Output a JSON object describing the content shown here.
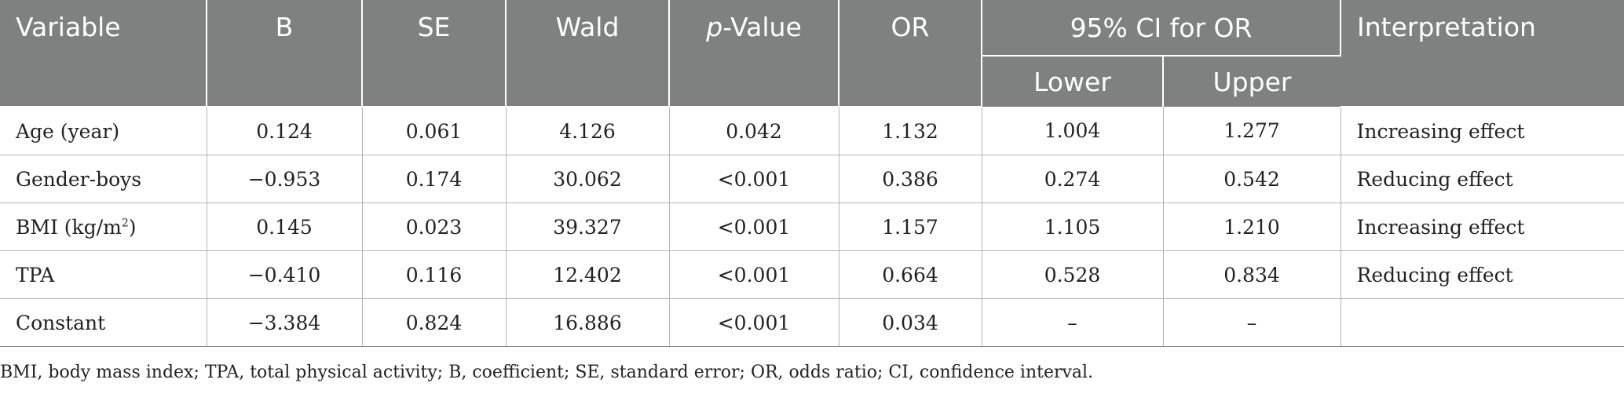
{
  "table": {
    "headers": {
      "variable": "Variable",
      "b": "B",
      "se": "SE",
      "wald": "Wald",
      "p_italic": "p",
      "p_rest": "-Value",
      "or": "OR",
      "ci_group": "95% CI for OR",
      "ci_lower": "Lower",
      "ci_upper": "Upper",
      "interpretation": "Interpretation"
    },
    "rows": [
      {
        "variable": "Age (year)",
        "variable_sup": "",
        "variable_suffix": "",
        "b": "0.124",
        "se": "0.061",
        "wald": "4.126",
        "p": "0.042",
        "or": "1.132",
        "lower": "1.004",
        "upper": "1.277",
        "interpretation": "Increasing effect"
      },
      {
        "variable": "Gender-boys",
        "variable_sup": "",
        "variable_suffix": "",
        "b": "−0.953",
        "se": "0.174",
        "wald": "30.062",
        "p": "<0.001",
        "or": "0.386",
        "lower": "0.274",
        "upper": "0.542",
        "interpretation": "Reducing effect"
      },
      {
        "variable": "BMI (kg/m",
        "variable_sup": "2",
        "variable_suffix": ")",
        "b": "0.145",
        "se": "0.023",
        "wald": "39.327",
        "p": "<0.001",
        "or": "1.157",
        "lower": "1.105",
        "upper": "1.210",
        "interpretation": "Increasing effect"
      },
      {
        "variable": "TPA",
        "variable_sup": "",
        "variable_suffix": "",
        "b": "−0.410",
        "se": "0.116",
        "wald": "12.402",
        "p": "<0.001",
        "or": "0.664",
        "lower": "0.528",
        "upper": "0.834",
        "interpretation": "Reducing effect"
      },
      {
        "variable": "Constant",
        "variable_sup": "",
        "variable_suffix": "",
        "b": "−3.384",
        "se": "0.824",
        "wald": "16.886",
        "p": "<0.001",
        "or": "0.034",
        "lower": "–",
        "upper": "–",
        "interpretation": ""
      }
    ]
  },
  "footnote": "BMI, body mass index; TPA, total physical activity; B, coefficient; SE, standard error; OR, odds ratio; CI, confidence interval.",
  "colors": {
    "header_bg": "#7f8080",
    "header_text": "#ffffff",
    "grid_line": "#b4b4b4"
  }
}
